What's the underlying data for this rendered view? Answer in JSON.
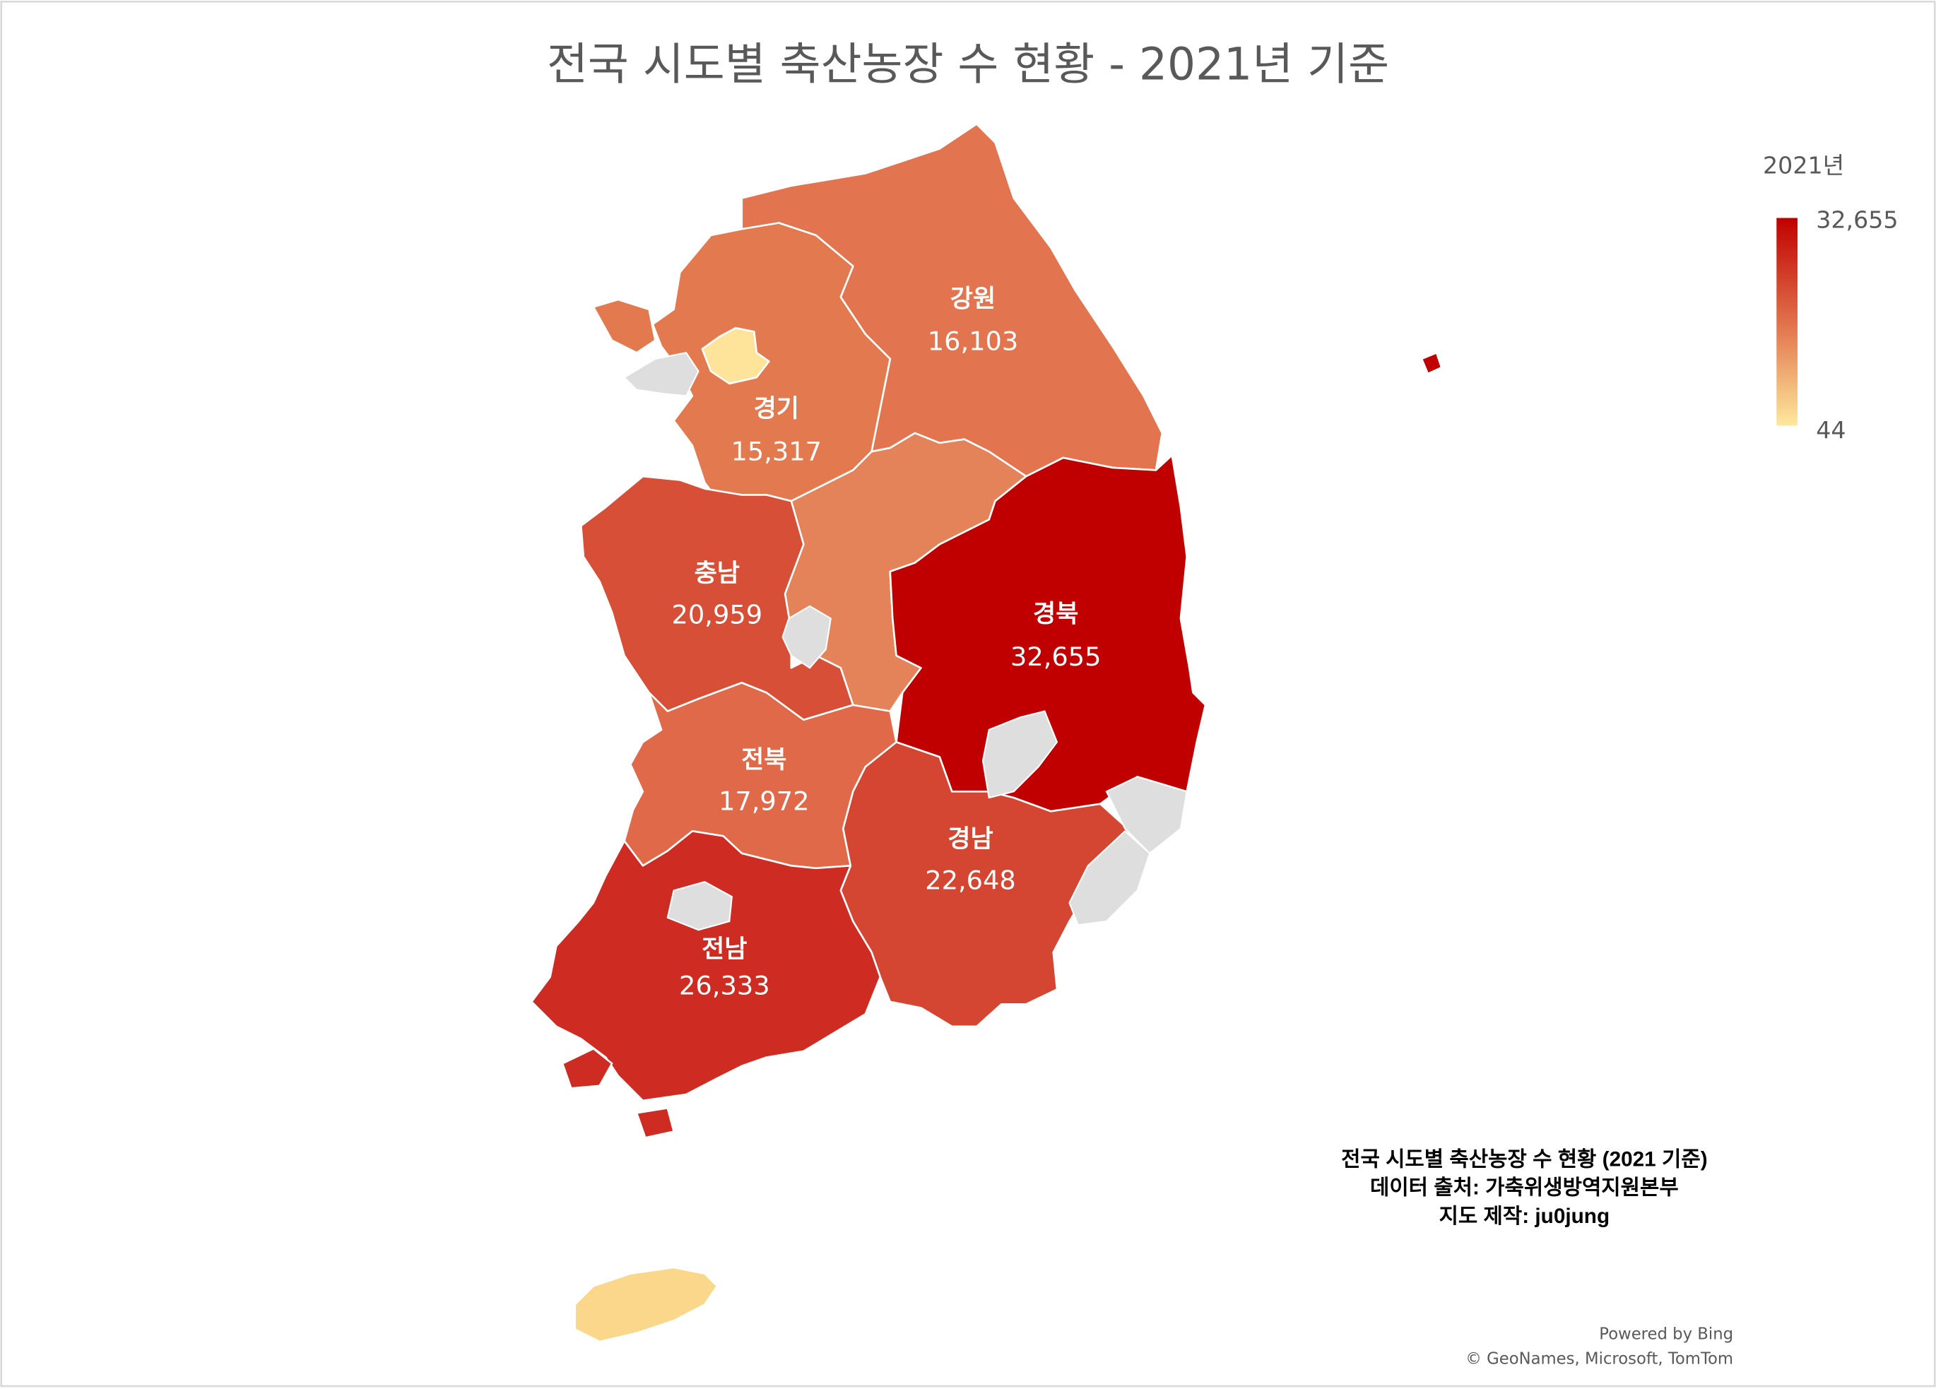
{
  "title": "전국 시도별 축산농장 수 현황 - 2021년 기준",
  "legend": {
    "title": "2021년",
    "max_label": "32,655",
    "min_label": "44",
    "max_color": "#c00000",
    "mid_color": "#e0704a",
    "min_color": "#fee89c"
  },
  "regions": {
    "gangwon": {
      "name": "강원",
      "value": "16,103",
      "color": "#e2754f"
    },
    "gyeonggi": {
      "name": "경기",
      "value": "15,317",
      "color": "#e3794f"
    },
    "chungbuk": {
      "color": "#e4835a"
    },
    "chungnam": {
      "name": "충남",
      "value": "20,959",
      "color": "#d64f36"
    },
    "gyeongbuk": {
      "name": "경북",
      "value": "32,655",
      "color": "#c00000"
    },
    "jeonbuk": {
      "name": "전북",
      "value": "17,972",
      "color": "#e0694a"
    },
    "gyeongnam": {
      "name": "경남",
      "value": "22,648",
      "color": "#d54632"
    },
    "jeonnam": {
      "name": "전남",
      "value": "26,333",
      "color": "#ce2c22"
    },
    "seoul": {
      "color": "#fde49a"
    },
    "jeju": {
      "color": "#fad78a"
    },
    "no_data_color": "#dedede"
  },
  "note": {
    "line1": "전국 시도별 축산농장 수 현황 (2021 기준)",
    "line2": "데이터 출처: 가축위생방역지원본부",
    "line3": "지도 제작: ju0jung"
  },
  "attribution": {
    "powered": "Powered by Bing",
    "copyright": "© GeoNames, Microsoft, TomTom"
  }
}
